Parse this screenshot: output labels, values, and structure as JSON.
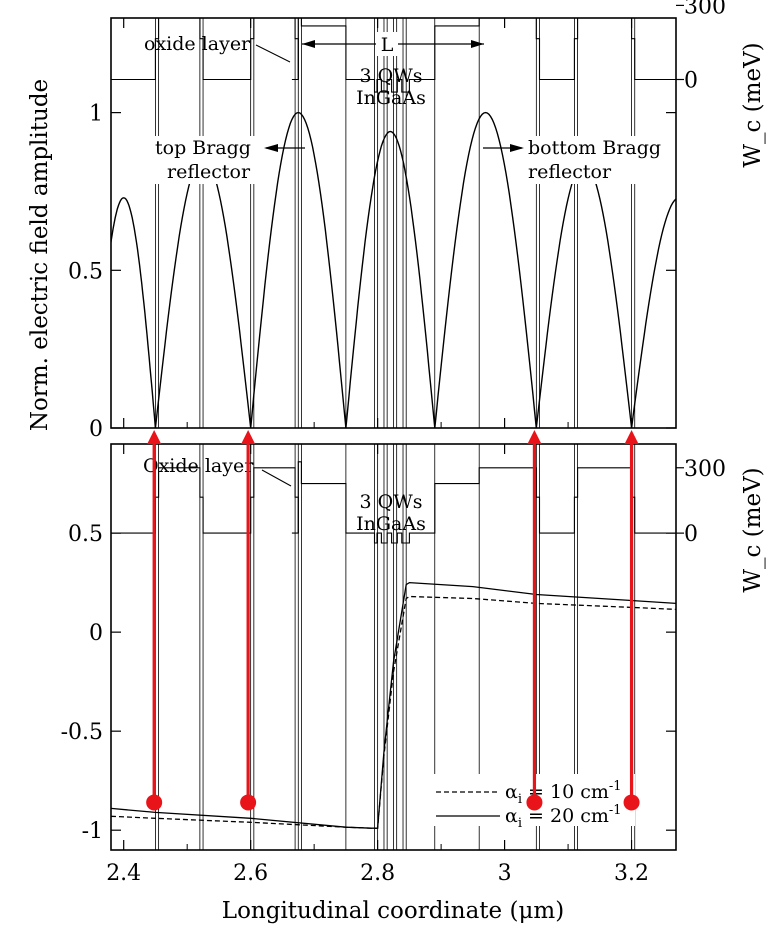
{
  "chart_data": [
    {
      "type": "line",
      "ylabel": "Norm. electric field amplitude",
      "right_ylabel": "W_c (meV)",
      "xlim": [
        2.38,
        3.27
      ],
      "ylim": [
        0,
        1.3
      ],
      "yticks": [
        {
          "value": 0,
          "label": "0"
        },
        {
          "value": 0.5,
          "label": "0.5"
        },
        {
          "value": 1,
          "label": "1"
        }
      ],
      "right_yticks": [
        {
          "value": 0,
          "label": "0"
        },
        {
          "value": 300,
          "label": "300"
        }
      ],
      "field_amplitude": {
        "nodes": [
          2.35,
          2.45,
          2.6,
          2.75,
          2.89,
          3.05,
          3.2,
          3.35
        ],
        "peaks": [
          0.73,
          0.86,
          1.0,
          0.94,
          1.0,
          0.84,
          0.73
        ]
      },
      "profile": {
        "w0_level": 1.105,
        "w300_level": 1.34,
        "qw_level": 1.275,
        "qw_bottom": 1.065,
        "oxide_level": 1.36
      },
      "annotations": {
        "oxide": "oxide layer",
        "cavity_length": "L",
        "qw_line1": "3 QWs",
        "qw_line2": "InGaAs",
        "top_line1": "top Bragg",
        "top_line2": "reflector",
        "bottom_line1": "bottom Bragg",
        "bottom_line2": "reflector"
      }
    },
    {
      "type": "line",
      "xlabel": "Longitudinal coordinate (μm)",
      "right_ylabel": "W_c (meV)",
      "xlim": [
        2.38,
        3.27
      ],
      "ylim": [
        -1.1,
        0.95
      ],
      "xticks": [
        {
          "value": 2.4,
          "label": "2.4"
        },
        {
          "value": 2.6,
          "label": "2.6"
        },
        {
          "value": 2.8,
          "label": "2.8"
        },
        {
          "value": 3.0,
          "label": "3"
        },
        {
          "value": 3.2,
          "label": "3.2"
        }
      ],
      "yticks": [
        {
          "value": -1,
          "label": "-1"
        },
        {
          "value": -0.5,
          "label": "-0.5"
        },
        {
          "value": 0,
          "label": "0"
        },
        {
          "value": 0.5,
          "label": "0.5"
        }
      ],
      "right_yticks": [
        {
          "value": 0,
          "label": "0"
        },
        {
          "value": 300,
          "label": "300"
        }
      ],
      "series": [
        {
          "name_prefix": "α",
          "name_sub": "i",
          "name_value": " = 10 cm",
          "name_sup": "-1",
          "style": "dashed",
          "x": [
            2.38,
            2.45,
            2.6,
            2.75,
            2.79,
            2.8,
            2.81,
            2.825,
            2.845,
            2.85,
            2.95,
            3.05,
            3.2,
            3.27
          ],
          "y": [
            -0.93,
            -0.94,
            -0.96,
            -0.985,
            -0.99,
            -0.99,
            -0.62,
            -0.2,
            0.17,
            0.18,
            0.17,
            0.145,
            0.125,
            0.115
          ]
        },
        {
          "name_prefix": "α",
          "name_sub": "i",
          "name_value": " = 20 cm",
          "name_sup": "-1",
          "style": "solid",
          "x": [
            2.38,
            2.45,
            2.6,
            2.75,
            2.79,
            2.8,
            2.81,
            2.825,
            2.845,
            2.85,
            2.95,
            3.05,
            3.2,
            3.27
          ],
          "y": [
            -0.89,
            -0.91,
            -0.94,
            -0.985,
            -0.99,
            -0.99,
            -0.6,
            -0.15,
            0.24,
            0.25,
            0.23,
            0.19,
            0.16,
            0.145
          ]
        }
      ],
      "profile": {
        "w0_level": 0.5,
        "w300_level": 0.83,
        "qw_level": 0.75,
        "qw_bottom": 0.45,
        "oxide_level": 0.86
      },
      "annotations": {
        "oxide": "Oxide layer",
        "qw_line1": "3 QWs",
        "qw_line2": "InGaAs"
      }
    }
  ],
  "structure": {
    "mirror_bands": [
      2.4,
      2.45,
      2.52,
      2.6,
      2.67,
      2.75,
      2.89,
      2.96,
      3.05,
      3.12,
      3.2,
      3.27
    ],
    "wide_high_bands": [
      [
        2.455,
        2.52
      ],
      [
        2.605,
        2.67
      ],
      [
        2.965,
        3.055
      ],
      [
        3.115,
        3.2
      ]
    ],
    "narrow_high_bands": [
      [
        2.45,
        2.455
      ],
      [
        2.52,
        2.525
      ],
      [
        2.6,
        2.605
      ],
      [
        2.67,
        2.675
      ],
      [
        3.055,
        3.06
      ],
      [
        3.11,
        3.115
      ],
      [
        3.2,
        3.205
      ]
    ],
    "qw_center": 2.823,
    "markers_x": [
      2.448,
      2.596,
      3.047,
      3.2
    ],
    "marker_colors": {
      "arrow": "#e8141a"
    }
  }
}
